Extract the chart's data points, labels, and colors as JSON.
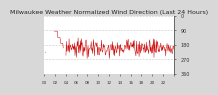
{
  "title": "Milwaukee Weather Normalized Wind Direction (Last 24 Hours)",
  "bg_color": "#d8d8d8",
  "plot_bg_color": "#ffffff",
  "line_color": "#cc0000",
  "grid_color": "#999999",
  "ylim": [
    360,
    0
  ],
  "xlim": [
    0,
    287
  ],
  "yticks": [
    0,
    90,
    180,
    270,
    360
  ],
  "ylabel_right": [
    "0",
    "90",
    "180",
    "270",
    "360"
  ],
  "n_points": 288,
  "noise_level": 200,
  "noise_amplitude": 28,
  "title_fontsize": 4.5,
  "tick_fontsize": 3.5,
  "left_segment_x1": 0,
  "left_segment_x2": 3,
  "left_segment_y": 225,
  "step1_x1": 22,
  "step1_x2": 30,
  "step1_y": 95,
  "step2_x1": 30,
  "step2_x2": 36,
  "step2_y": 135,
  "step3_x1": 36,
  "step3_x2": 41,
  "step3_y": 170,
  "drop_x": 42,
  "drop_y_end": 200,
  "noise_start": 48
}
